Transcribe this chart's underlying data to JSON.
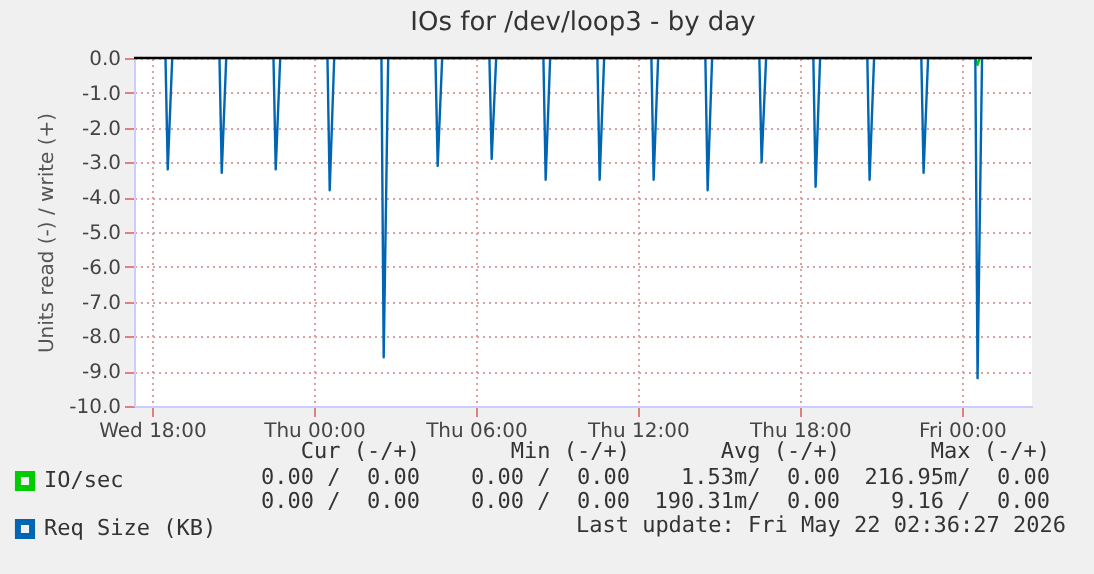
{
  "chart_data": {
    "type": "line",
    "title": "IOs for /dev/loop3 - by day",
    "ylabel": "Units read (-) / write (+)",
    "xlim": [
      "2026-05-20T17:20",
      "2026-05-22T02:36"
    ],
    "xticks": [
      {
        "value": "2026-05-20T18:00",
        "label": "Wed 18:00"
      },
      {
        "value": "2026-05-21T00:00",
        "label": "Thu 00:00"
      },
      {
        "value": "2026-05-21T06:00",
        "label": "Thu 06:00"
      },
      {
        "value": "2026-05-21T12:00",
        "label": "Thu 12:00"
      },
      {
        "value": "2026-05-21T18:00",
        "label": "Thu 18:00"
      },
      {
        "value": "2026-05-22T00:00",
        "label": "Fri 00:00"
      }
    ],
    "ylim": [
      -10,
      0
    ],
    "yticks": [
      {
        "value": 0,
        "label": "0.0"
      },
      {
        "value": -1,
        "label": "-1.0"
      },
      {
        "value": -2,
        "label": "-2.0"
      },
      {
        "value": -3,
        "label": "-3.0"
      },
      {
        "value": -4,
        "label": "-4.0"
      },
      {
        "value": -5,
        "label": "-5.0"
      },
      {
        "value": -6,
        "label": "-6.0"
      },
      {
        "value": -7,
        "label": "-7.0"
      },
      {
        "value": -8,
        "label": "-8.0"
      },
      {
        "value": -9,
        "label": "-9.0"
      },
      {
        "value": -10,
        "label": "-10.0"
      }
    ],
    "grid": true,
    "legend": "bottom left",
    "marker": "none",
    "line_style": "solid",
    "ref_lines": [
      {
        "axis": "y",
        "value": 0,
        "color": "#000000"
      }
    ],
    "series": [
      {
        "name": "IO/sec",
        "color": "#00cc00",
        "x": [
          "2026-05-22T00:30",
          "2026-05-22T00:35",
          "2026-05-22T00:40"
        ],
        "values": [
          0,
          -0.2,
          0
        ]
      },
      {
        "name": "Req Size (KB)",
        "color": "#0066b3",
        "x": [
          "2026-05-20T18:30",
          "2026-05-20T18:35",
          "2026-05-20T18:45",
          "2026-05-20T20:30",
          "2026-05-20T20:35",
          "2026-05-20T20:45",
          "2026-05-20T22:30",
          "2026-05-20T22:35",
          "2026-05-20T22:45",
          "2026-05-21T00:30",
          "2026-05-21T00:35",
          "2026-05-21T00:45",
          "2026-05-21T02:30",
          "2026-05-21T02:35",
          "2026-05-21T02:45",
          "2026-05-21T04:30",
          "2026-05-21T04:35",
          "2026-05-21T04:45",
          "2026-05-21T06:30",
          "2026-05-21T06:35",
          "2026-05-21T06:45",
          "2026-05-21T08:30",
          "2026-05-21T08:35",
          "2026-05-21T08:45",
          "2026-05-21T10:30",
          "2026-05-21T10:35",
          "2026-05-21T10:45",
          "2026-05-21T12:30",
          "2026-05-21T12:35",
          "2026-05-21T12:45",
          "2026-05-21T14:30",
          "2026-05-21T14:35",
          "2026-05-21T14:45",
          "2026-05-21T16:30",
          "2026-05-21T16:35",
          "2026-05-21T16:45",
          "2026-05-21T18:30",
          "2026-05-21T18:35",
          "2026-05-21T18:45",
          "2026-05-21T20:30",
          "2026-05-21T20:35",
          "2026-05-21T20:45",
          "2026-05-21T22:30",
          "2026-05-21T22:35",
          "2026-05-21T22:45",
          "2026-05-22T00:30",
          "2026-05-22T00:35",
          "2026-05-22T00:45"
        ],
        "values": [
          0,
          -3.2,
          0,
          0,
          -3.3,
          0,
          0,
          -3.2,
          0,
          0,
          -3.8,
          0,
          0,
          -8.6,
          0,
          0,
          -3.1,
          0,
          0,
          -2.9,
          0,
          0,
          -3.5,
          0,
          0,
          -3.5,
          0,
          0,
          -3.5,
          0,
          0,
          -3.8,
          0,
          0,
          -3.0,
          0,
          0,
          -3.7,
          0,
          0,
          -3.5,
          0,
          0,
          -3.3,
          0,
          0,
          -9.2,
          0
        ]
      }
    ],
    "annotations": [
      "Cur (-/+)",
      "Min (-/+)",
      "Avg (-/+)",
      "Max (-/+)",
      "0.00 /  0.00",
      "0.00 /  0.00",
      "1.53m/  0.00",
      "216.95m/  0.00",
      "0.00 /  0.00",
      "0.00 /  0.00",
      "190.31m/  0.00",
      "9.16 /  0.00",
      "Last update: Fri May 22 02:36:27 2026"
    ]
  }
}
